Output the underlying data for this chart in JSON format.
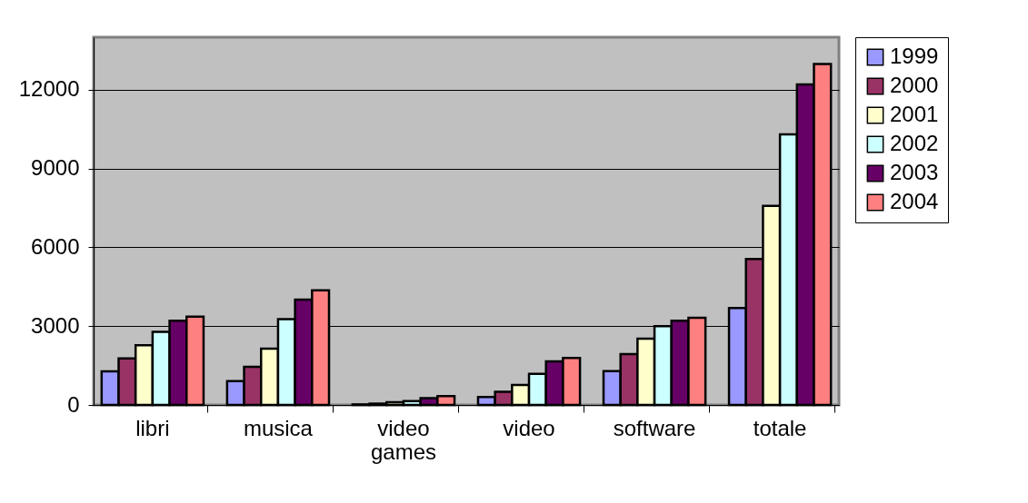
{
  "chart_data": {
    "type": "bar",
    "categories": [
      "libri",
      "musica",
      "video games",
      "video",
      "software",
      "totale"
    ],
    "series": [
      {
        "name": "1999",
        "color": "#9999ff",
        "values": [
          1280,
          910,
          20,
          300,
          1290,
          3690
        ]
      },
      {
        "name": "2000",
        "color": "#993366",
        "values": [
          1770,
          1450,
          50,
          500,
          1940,
          5560
        ]
      },
      {
        "name": "2001",
        "color": "#ffffcc",
        "values": [
          2270,
          2140,
          100,
          760,
          2520,
          7580
        ]
      },
      {
        "name": "2002",
        "color": "#ccffff",
        "values": [
          2780,
          3270,
          150,
          1180,
          3000,
          10300
        ]
      },
      {
        "name": "2003",
        "color": "#660066",
        "values": [
          3210,
          4010,
          260,
          1660,
          3210,
          12200
        ]
      },
      {
        "name": "2004",
        "color": "#ff8080",
        "values": [
          3360,
          4360,
          340,
          1790,
          3320,
          12980
        ]
      }
    ],
    "ylim": [
      0,
      14000
    ],
    "yticks": [
      0,
      3000,
      6000,
      9000,
      12000
    ],
    "grid": "y",
    "legend": "right"
  }
}
